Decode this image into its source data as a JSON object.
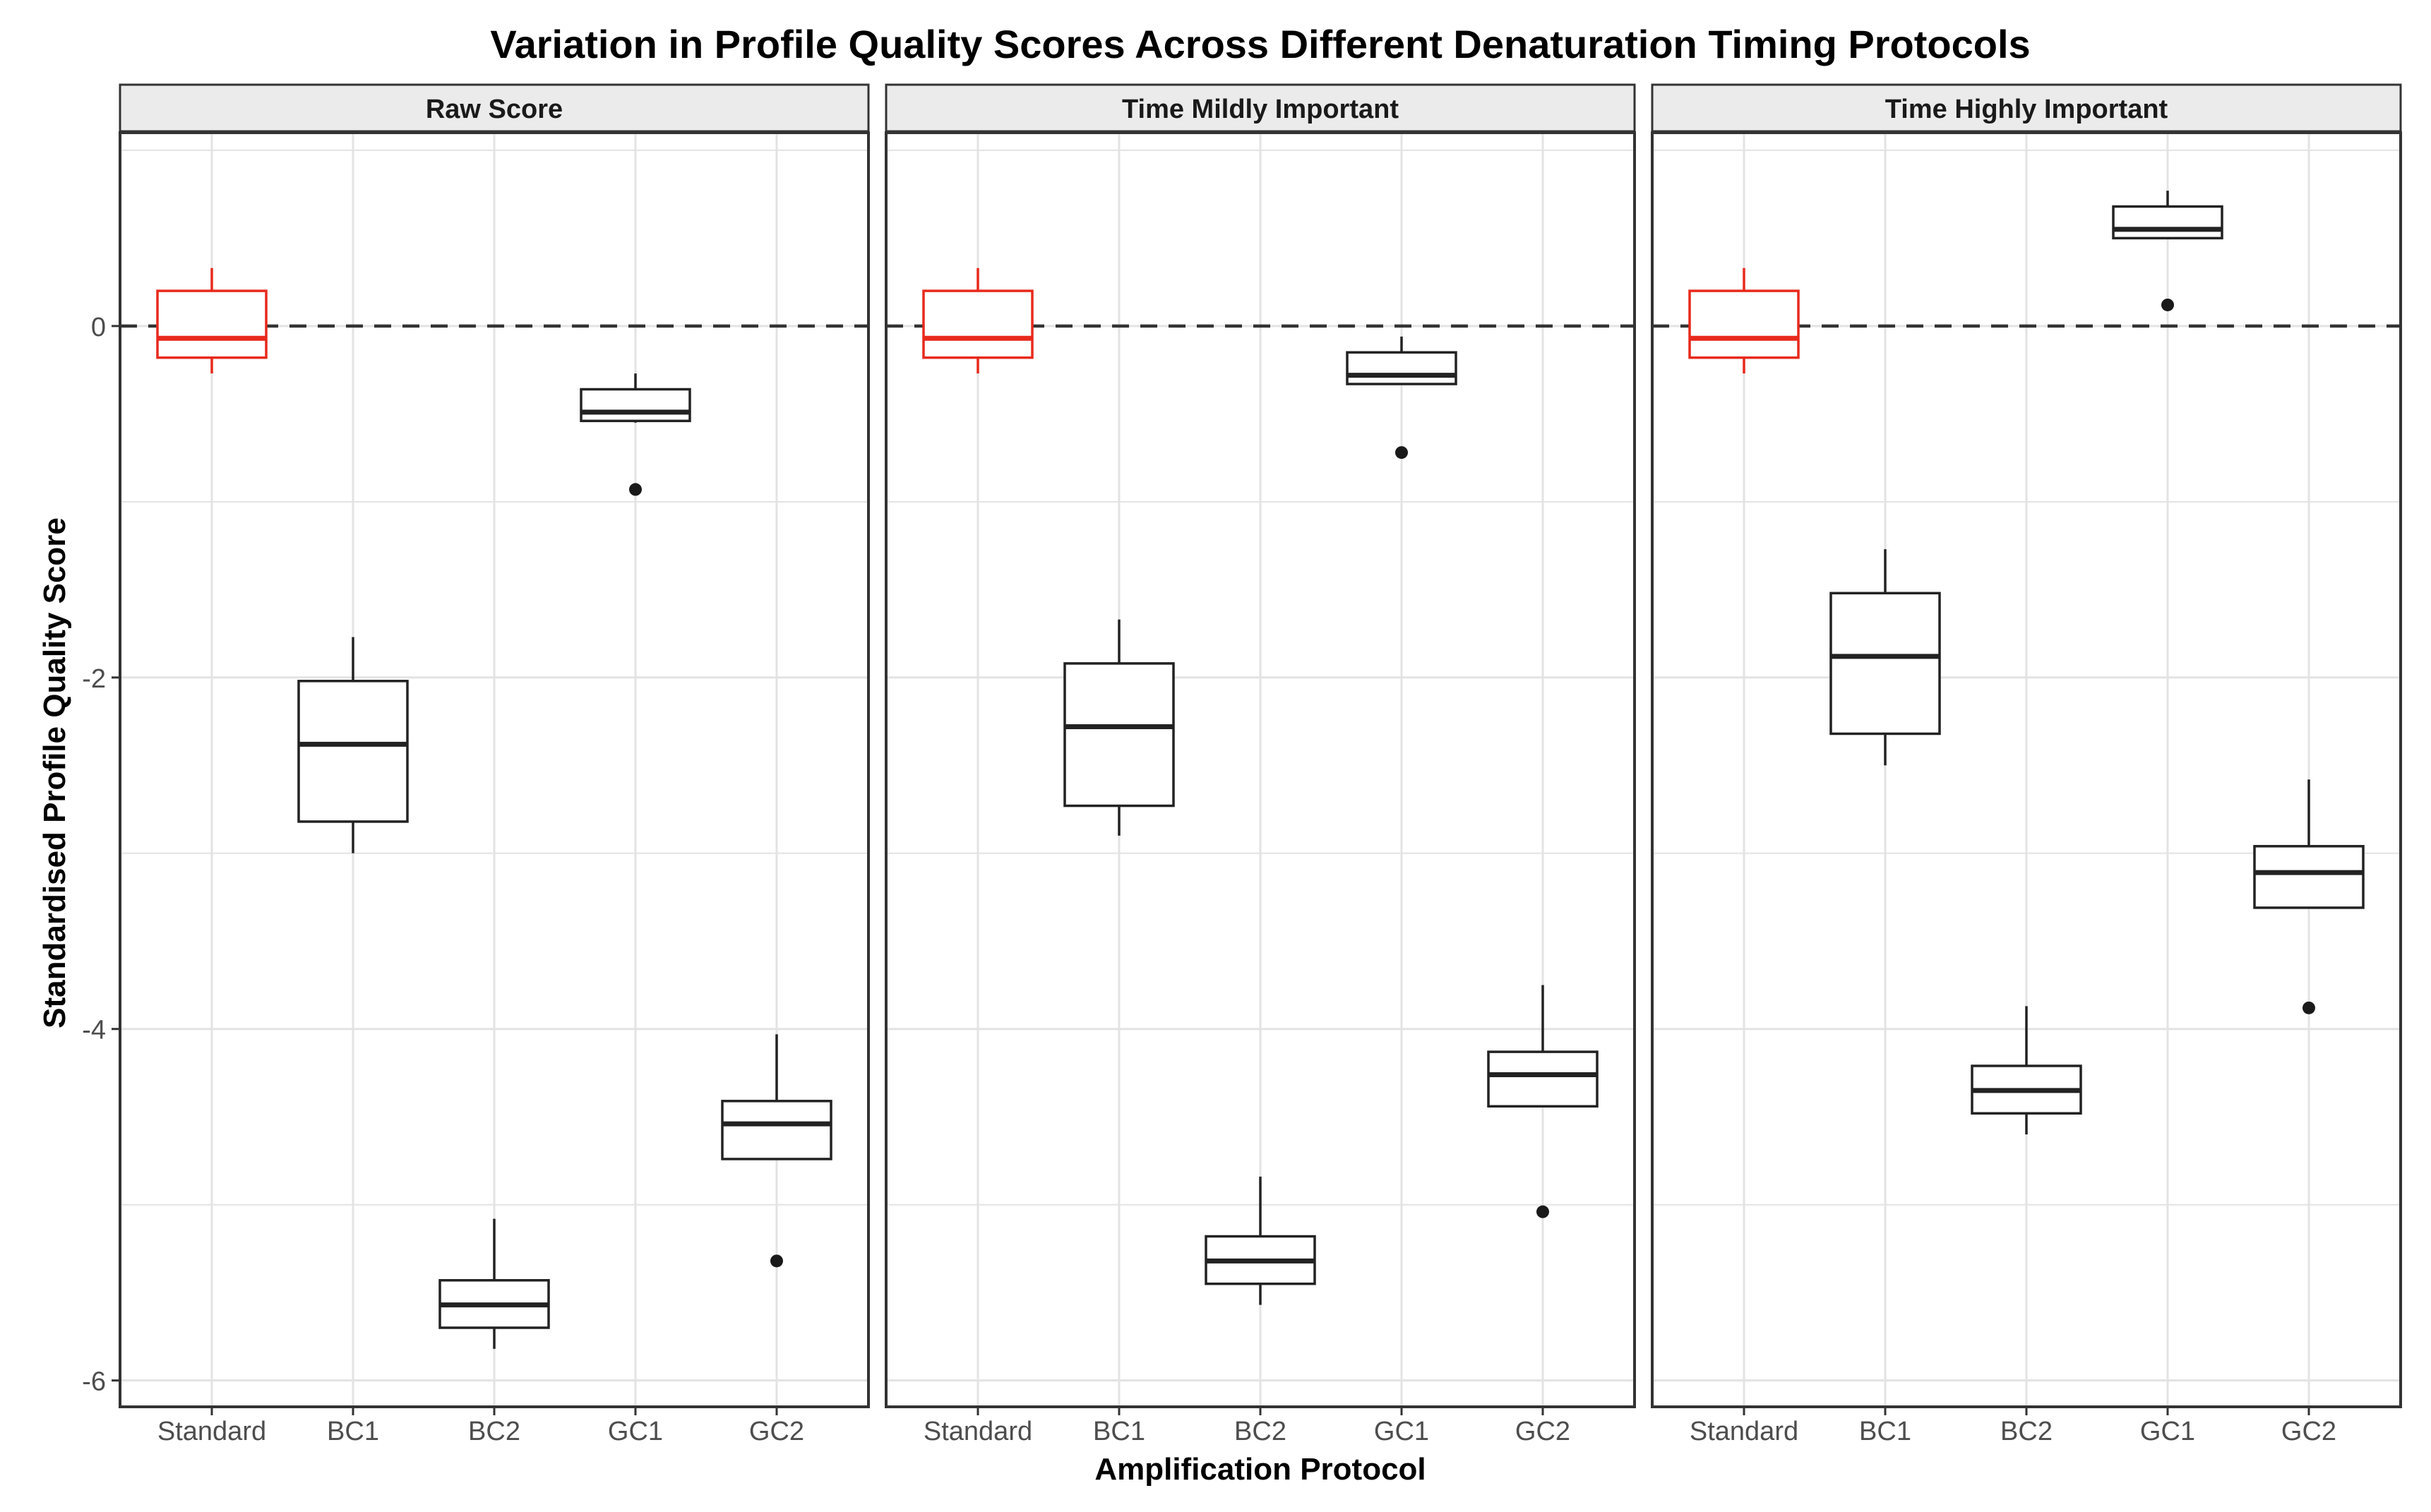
{
  "chart_data": {
    "type": "boxplot",
    "title": "Variation in Profile Quality Scores Across Different Denaturation Timing Protocols",
    "xlabel": "Amplification Protocol",
    "ylabel": "Standardised Profile Quality Score",
    "ylim": [
      -6.15,
      1.1
    ],
    "yticks": [
      0,
      -2,
      -4,
      -6
    ],
    "ytick_labels": [
      "0",
      "-2",
      "-4",
      "-6"
    ],
    "categories": [
      "Standard",
      "BC1",
      "BC2",
      "GC1",
      "GC2"
    ],
    "reference_line": {
      "y": 0,
      "style": "dashed"
    },
    "colors": {
      "Standard": "#e8291c",
      "other": "#222222",
      "strip_fill": "#ebebeb",
      "grid": "#e3e3e3"
    },
    "grid": true,
    "panels": [
      {
        "label": "Raw Score",
        "boxes": [
          {
            "category": "Standard",
            "whisker_low": -0.27,
            "q1": -0.18,
            "median": -0.07,
            "q3": 0.2,
            "whisker_high": 0.33,
            "outliers": []
          },
          {
            "category": "BC1",
            "whisker_low": -3.0,
            "q1": -2.82,
            "median": -2.38,
            "q3": -2.02,
            "whisker_high": -1.77,
            "outliers": []
          },
          {
            "category": "BC2",
            "whisker_low": -5.82,
            "q1": -5.7,
            "median": -5.57,
            "q3": -5.43,
            "whisker_high": -5.08,
            "outliers": []
          },
          {
            "category": "GC1",
            "whisker_low": -0.55,
            "q1": -0.54,
            "median": -0.49,
            "q3": -0.36,
            "whisker_high": -0.27,
            "outliers": [
              -0.93
            ]
          },
          {
            "category": "GC2",
            "whisker_low": -4.74,
            "q1": -4.74,
            "median": -4.54,
            "q3": -4.41,
            "whisker_high": -4.03,
            "outliers": [
              -5.32
            ]
          }
        ]
      },
      {
        "label": "Time Mildly Important",
        "boxes": [
          {
            "category": "Standard",
            "whisker_low": -0.27,
            "q1": -0.18,
            "median": -0.07,
            "q3": 0.2,
            "whisker_high": 0.33,
            "outliers": []
          },
          {
            "category": "BC1",
            "whisker_low": -2.9,
            "q1": -2.73,
            "median": -2.28,
            "q3": -1.92,
            "whisker_high": -1.67,
            "outliers": []
          },
          {
            "category": "BC2",
            "whisker_low": -5.57,
            "q1": -5.45,
            "median": -5.32,
            "q3": -5.18,
            "whisker_high": -4.84,
            "outliers": []
          },
          {
            "category": "GC1",
            "whisker_low": -0.33,
            "q1": -0.33,
            "median": -0.28,
            "q3": -0.15,
            "whisker_high": -0.06,
            "outliers": [
              -0.72
            ]
          },
          {
            "category": "GC2",
            "whisker_low": -4.44,
            "q1": -4.44,
            "median": -4.26,
            "q3": -4.13,
            "whisker_high": -3.75,
            "outliers": [
              -5.04
            ]
          }
        ]
      },
      {
        "label": "Time Highly Important",
        "boxes": [
          {
            "category": "Standard",
            "whisker_low": -0.27,
            "q1": -0.18,
            "median": -0.07,
            "q3": 0.2,
            "whisker_high": 0.33,
            "outliers": []
          },
          {
            "category": "BC1",
            "whisker_low": -2.5,
            "q1": -2.32,
            "median": -1.88,
            "q3": -1.52,
            "whisker_high": -1.27,
            "outliers": []
          },
          {
            "category": "BC2",
            "whisker_low": -4.6,
            "q1": -4.48,
            "median": -4.35,
            "q3": -4.21,
            "whisker_high": -3.87,
            "outliers": []
          },
          {
            "category": "GC1",
            "whisker_low": 0.5,
            "q1": 0.5,
            "median": 0.55,
            "q3": 0.68,
            "whisker_high": 0.77,
            "outliers": [
              0.12
            ]
          },
          {
            "category": "GC2",
            "whisker_low": -3.31,
            "q1": -3.31,
            "median": -3.11,
            "q3": -2.96,
            "whisker_high": -2.58,
            "outliers": [
              -3.88
            ]
          }
        ]
      }
    ]
  }
}
